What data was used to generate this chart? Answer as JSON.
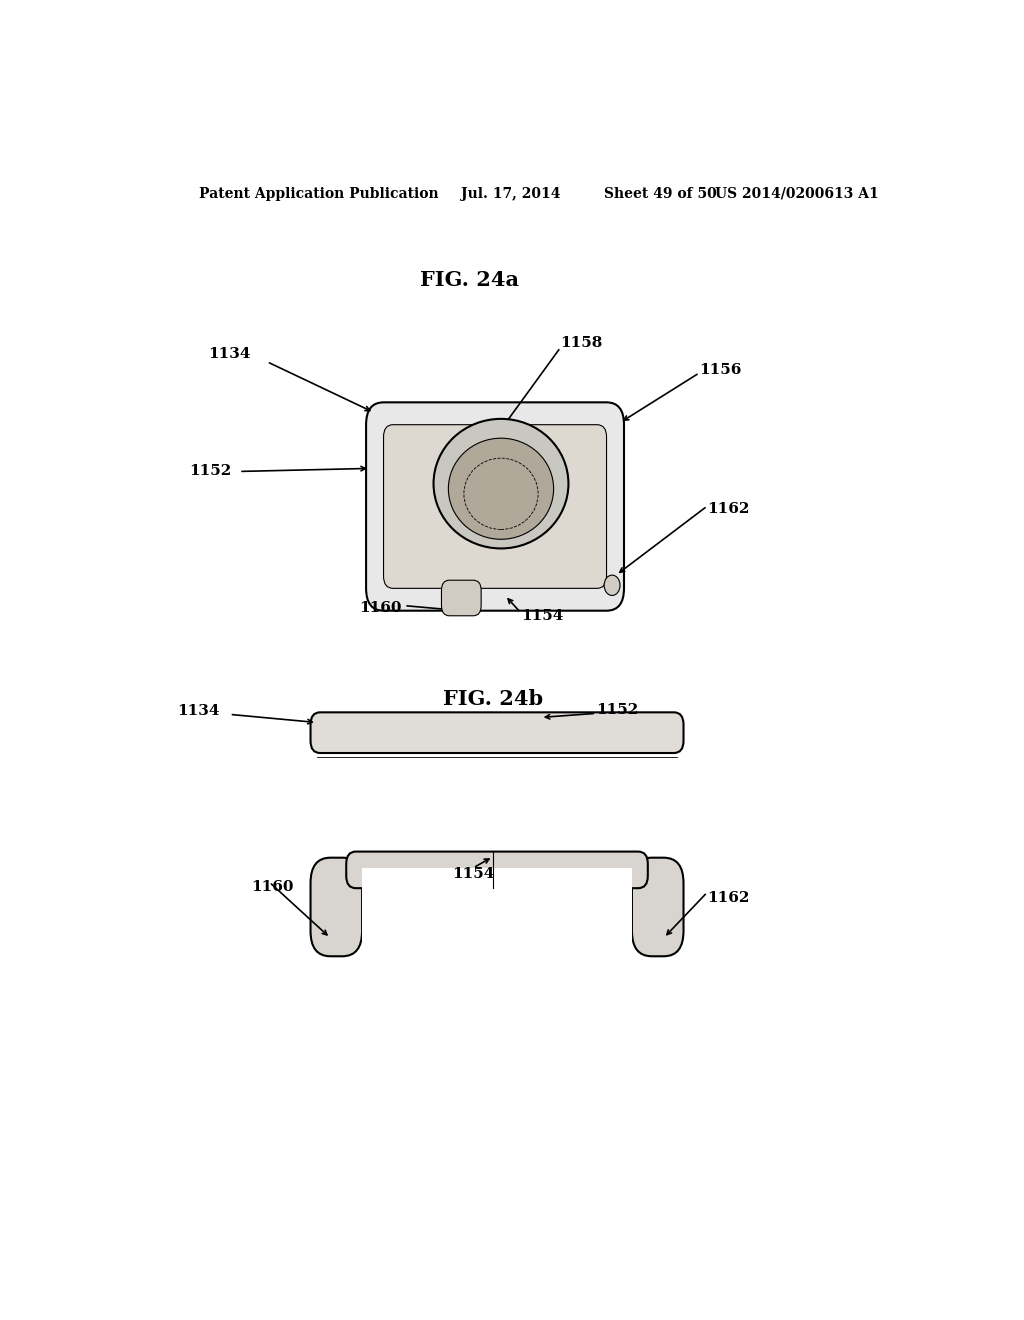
{
  "background_color": "#ffffff",
  "header_text": "Patent Application Publication",
  "header_date": "Jul. 17, 2014",
  "header_sheet": "Sheet 49 of 50",
  "header_patent": "US 2014/0200613 A1",
  "fig24a_title": "FIG. 24a",
  "fig24b_title": "FIG. 24b",
  "line_color": "#000000",
  "text_color": "#000000",
  "label_fontsize": 11,
  "title_fontsize": 15,
  "header_fontsize": 10
}
